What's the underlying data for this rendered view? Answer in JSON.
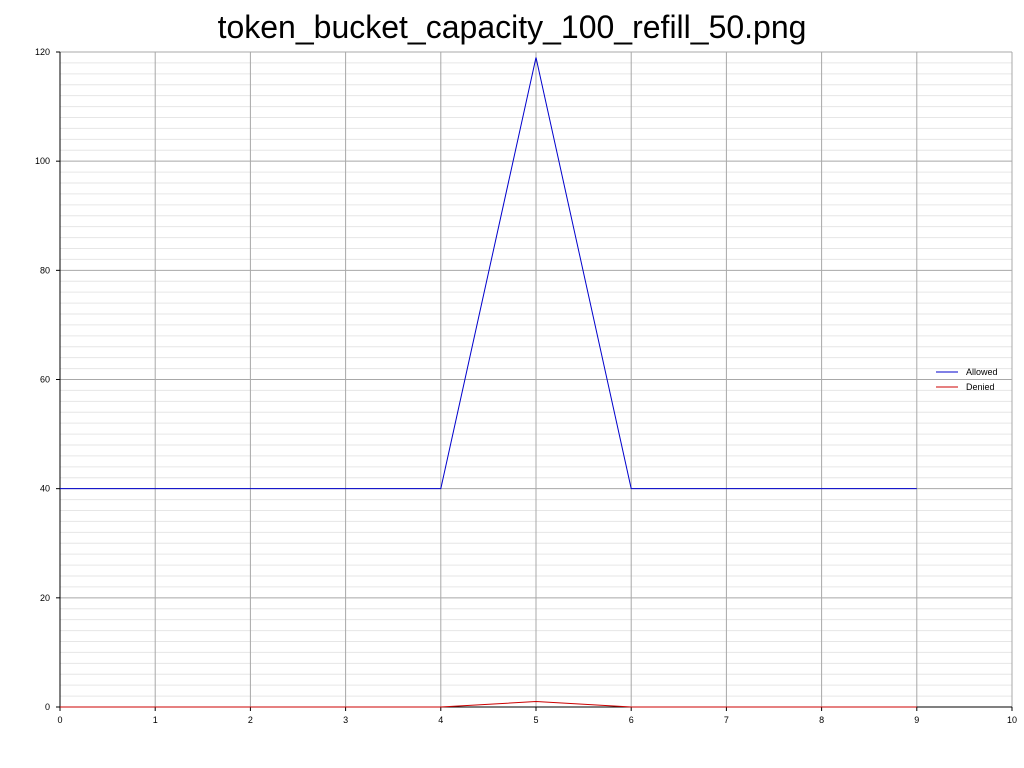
{
  "chart_data": {
    "type": "line",
    "title": "token_bucket_capacity_100_refill_50.png",
    "xlabel": "",
    "ylabel": "",
    "xlim": [
      0,
      10
    ],
    "ylim": [
      0,
      120
    ],
    "x_ticks": [
      0,
      1,
      2,
      3,
      4,
      5,
      6,
      7,
      8,
      9,
      10
    ],
    "y_ticks": [
      0,
      20,
      40,
      60,
      80,
      100,
      120
    ],
    "y_minor_step": 2,
    "grid": true,
    "legend_position": "right",
    "series": [
      {
        "name": "Allowed",
        "color": "#0000cc",
        "x": [
          0,
          1,
          2,
          3,
          4,
          5,
          6,
          7,
          8,
          9
        ],
        "y": [
          40,
          40,
          40,
          40,
          40,
          119,
          40,
          40,
          40,
          40
        ]
      },
      {
        "name": "Denied",
        "color": "#cc0000",
        "x": [
          0,
          1,
          2,
          3,
          4,
          5,
          6,
          7,
          8,
          9
        ],
        "y": [
          0,
          0,
          0,
          0,
          0,
          1,
          0,
          0,
          0,
          0
        ]
      }
    ]
  }
}
